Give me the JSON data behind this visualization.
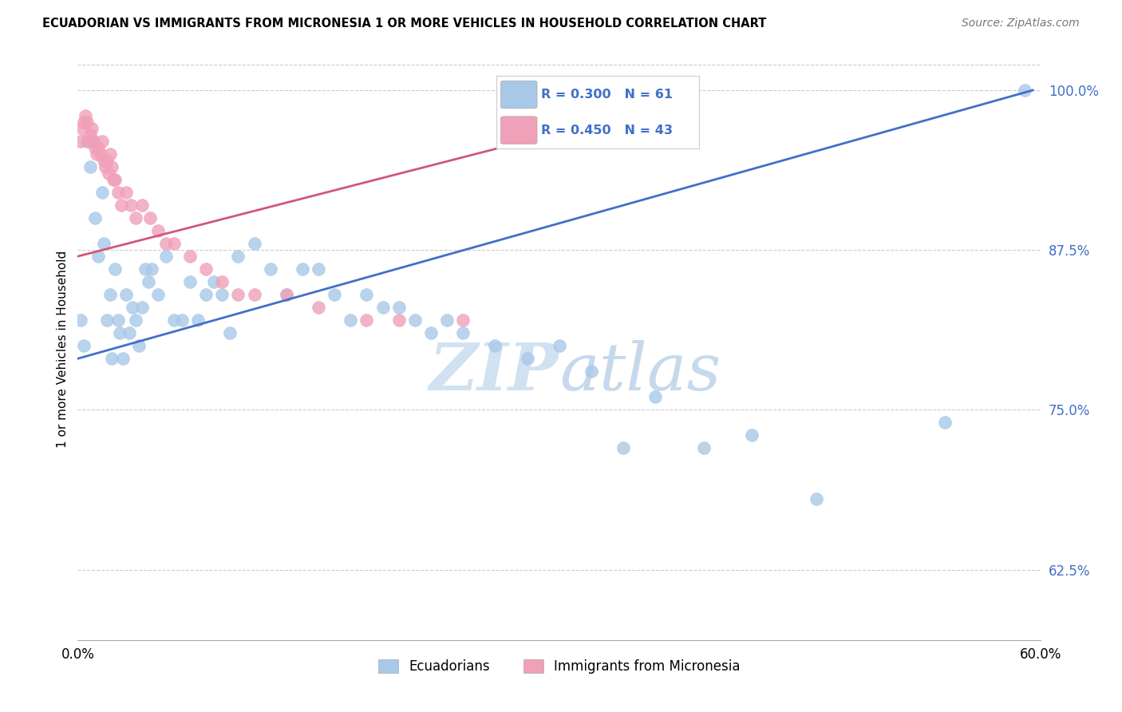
{
  "title": "ECUADORIAN VS IMMIGRANTS FROM MICRONESIA 1 OR MORE VEHICLES IN HOUSEHOLD CORRELATION CHART",
  "source": "Source: ZipAtlas.com",
  "ylabel": "1 or more Vehicles in Household",
  "xlabel_blue": "Ecuadorians",
  "xlabel_pink": "Immigrants from Micronesia",
  "xmin": 0.0,
  "xmax": 0.6,
  "ymin": 0.57,
  "ymax": 1.025,
  "yticks": [
    0.625,
    0.75,
    0.875,
    1.0
  ],
  "ytick_labels": [
    "62.5%",
    "75.0%",
    "87.5%",
    "100.0%"
  ],
  "xticks": [
    0.0,
    0.1,
    0.2,
    0.3,
    0.4,
    0.5,
    0.6
  ],
  "xtick_labels": [
    "0.0%",
    "",
    "",
    "",
    "",
    "",
    "60.0%"
  ],
  "blue_R": 0.3,
  "blue_N": 61,
  "pink_R": 0.45,
  "pink_N": 43,
  "blue_color": "#a8c8e8",
  "pink_color": "#f0a0b8",
  "blue_line_color": "#4070c8",
  "pink_line_color": "#d05878",
  "watermark_zip": "ZIP",
  "watermark_atlas": "atlas",
  "blue_scatter_x": [
    0.002,
    0.004,
    0.006,
    0.008,
    0.01,
    0.011,
    0.013,
    0.015,
    0.016,
    0.018,
    0.02,
    0.021,
    0.023,
    0.025,
    0.026,
    0.028,
    0.03,
    0.032,
    0.034,
    0.036,
    0.038,
    0.04,
    0.042,
    0.044,
    0.046,
    0.05,
    0.055,
    0.06,
    0.065,
    0.07,
    0.075,
    0.08,
    0.085,
    0.09,
    0.095,
    0.1,
    0.11,
    0.12,
    0.13,
    0.14,
    0.15,
    0.16,
    0.17,
    0.18,
    0.19,
    0.2,
    0.21,
    0.22,
    0.23,
    0.24,
    0.26,
    0.28,
    0.3,
    0.32,
    0.34,
    0.36,
    0.39,
    0.42,
    0.46,
    0.54,
    0.59
  ],
  "blue_scatter_y": [
    0.82,
    0.8,
    0.96,
    0.94,
    0.96,
    0.9,
    0.87,
    0.92,
    0.88,
    0.82,
    0.84,
    0.79,
    0.86,
    0.82,
    0.81,
    0.79,
    0.84,
    0.81,
    0.83,
    0.82,
    0.8,
    0.83,
    0.86,
    0.85,
    0.86,
    0.84,
    0.87,
    0.82,
    0.82,
    0.85,
    0.82,
    0.84,
    0.85,
    0.84,
    0.81,
    0.87,
    0.88,
    0.86,
    0.84,
    0.86,
    0.86,
    0.84,
    0.82,
    0.84,
    0.83,
    0.83,
    0.82,
    0.81,
    0.82,
    0.81,
    0.8,
    0.79,
    0.8,
    0.78,
    0.72,
    0.76,
    0.72,
    0.73,
    0.68,
    0.74,
    1.0
  ],
  "pink_scatter_x": [
    0.002,
    0.003,
    0.004,
    0.005,
    0.006,
    0.007,
    0.008,
    0.009,
    0.01,
    0.011,
    0.012,
    0.013,
    0.014,
    0.015,
    0.016,
    0.017,
    0.018,
    0.019,
    0.02,
    0.021,
    0.022,
    0.023,
    0.025,
    0.027,
    0.03,
    0.033,
    0.036,
    0.04,
    0.045,
    0.05,
    0.055,
    0.06,
    0.07,
    0.08,
    0.09,
    0.1,
    0.11,
    0.13,
    0.15,
    0.18,
    0.2,
    0.24,
    0.28
  ],
  "pink_scatter_y": [
    0.96,
    0.97,
    0.975,
    0.98,
    0.975,
    0.96,
    0.965,
    0.97,
    0.96,
    0.955,
    0.95,
    0.955,
    0.95,
    0.96,
    0.945,
    0.94,
    0.945,
    0.935,
    0.95,
    0.94,
    0.93,
    0.93,
    0.92,
    0.91,
    0.92,
    0.91,
    0.9,
    0.91,
    0.9,
    0.89,
    0.88,
    0.88,
    0.87,
    0.86,
    0.85,
    0.84,
    0.84,
    0.84,
    0.83,
    0.82,
    0.82,
    0.82,
    0.97
  ],
  "blue_line_x": [
    0.0,
    0.595
  ],
  "blue_line_y": [
    0.79,
    1.0
  ],
  "pink_line_x": [
    0.0,
    0.325
  ],
  "pink_line_y": [
    0.87,
    0.975
  ]
}
